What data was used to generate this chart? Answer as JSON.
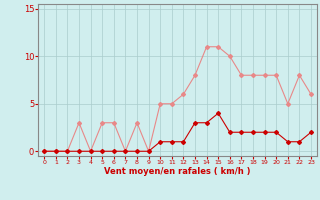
{
  "x": [
    0,
    1,
    2,
    3,
    4,
    5,
    6,
    7,
    8,
    9,
    10,
    11,
    12,
    13,
    14,
    15,
    16,
    17,
    18,
    19,
    20,
    21,
    22,
    23
  ],
  "rafales": [
    0,
    0,
    0,
    3,
    0,
    3,
    3,
    0,
    3,
    0,
    5,
    5,
    6,
    8,
    11,
    11,
    10,
    8,
    8,
    8,
    8,
    5,
    8,
    6
  ],
  "moyen": [
    0,
    0,
    0,
    0,
    0,
    0,
    0,
    0,
    0,
    0,
    1,
    1,
    1,
    3,
    3,
    4,
    2,
    2,
    2,
    2,
    2,
    1,
    1,
    2
  ],
  "rafales_color": "#e88888",
  "moyen_color": "#cc0000",
  "bg_color": "#d0eeee",
  "grid_color": "#aacccc",
  "tick_color": "#cc0000",
  "spine_color": "#888888",
  "xlabel": "Vent moyen/en rafales ( km/h )",
  "yticks": [
    0,
    5,
    10,
    15
  ],
  "xticks": [
    0,
    1,
    2,
    3,
    4,
    5,
    6,
    7,
    8,
    9,
    10,
    11,
    12,
    13,
    14,
    15,
    16,
    17,
    18,
    19,
    20,
    21,
    22,
    23
  ],
  "ylim": [
    -0.5,
    15.5
  ],
  "xlim": [
    -0.5,
    23.5
  ]
}
